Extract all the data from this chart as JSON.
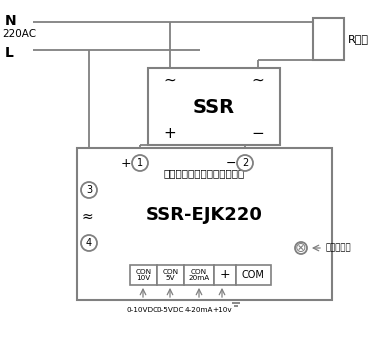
{
  "bg_color": "#ffffff",
  "line_color": "#808080",
  "text_color": "#000000",
  "title": "SSR-EJK220",
  "subtitle": "智能单相移相固态触发器模块",
  "ssr_label": "SSR",
  "r_load": "R负载",
  "work_indicator": "工作指示灯",
  "n_label": "N",
  "l_label": "L",
  "ac_label": "220AC",
  "con_labels": [
    "CON\n10V",
    "CON\n5V",
    "CON\n20mA"
  ],
  "plus_label": "+",
  "com_label": "COM",
  "bottom_labels": [
    "0-10VDC",
    "0-5VDC",
    "4-20mA",
    "+10v"
  ]
}
